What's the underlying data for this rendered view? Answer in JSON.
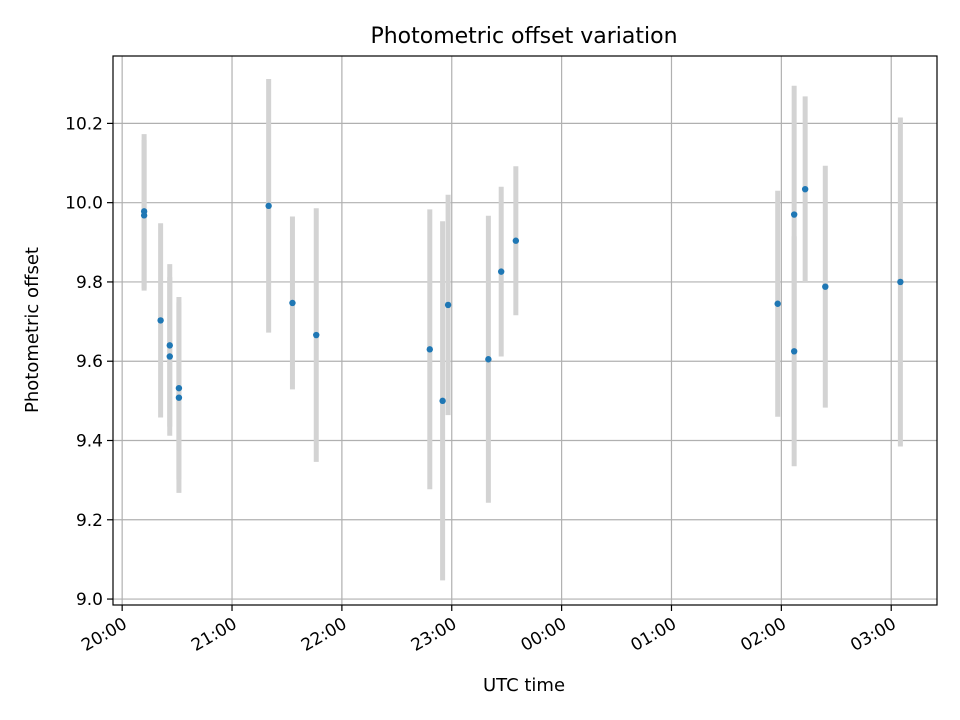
{
  "chart_data": {
    "type": "scatter",
    "title": "Photometric offset variation",
    "xlabel": "UTC time",
    "ylabel": "Photometric offset",
    "xlim": [
      "19:55",
      "03:25"
    ],
    "ylim": [
      8.985,
      10.37
    ],
    "x_ticks": [
      "20:00",
      "21:00",
      "22:00",
      "23:00",
      "00:00",
      "01:00",
      "02:00",
      "03:00"
    ],
    "y_ticks": [
      "9.0",
      "9.2",
      "9.4",
      "9.6",
      "9.8",
      "10.0",
      "10.2"
    ],
    "grid": true,
    "errorbar_color": "#d3d3d3",
    "point_color": "#1f77b4",
    "points": [
      {
        "x": "20:12",
        "y": 9.978,
        "err": 0.195
      },
      {
        "x": "20:12",
        "y": 9.968,
        "err": 0.19
      },
      {
        "x": "20:21",
        "y": 9.703,
        "err": 0.245
      },
      {
        "x": "20:26",
        "y": 9.64,
        "err": 0.205
      },
      {
        "x": "20:26",
        "y": 9.612,
        "err": 0.2
      },
      {
        "x": "20:31",
        "y": 9.532,
        "err": 0.23
      },
      {
        "x": "20:31",
        "y": 9.508,
        "err": 0.24
      },
      {
        "x": "21:20",
        "y": 9.992,
        "err": 0.32
      },
      {
        "x": "21:33",
        "y": 9.747,
        "err": 0.218
      },
      {
        "x": "21:46",
        "y": 9.666,
        "err": 0.32
      },
      {
        "x": "22:48",
        "y": 9.63,
        "err": 0.353
      },
      {
        "x": "22:55",
        "y": 9.5,
        "err": 0.453
      },
      {
        "x": "22:58",
        "y": 9.742,
        "err": 0.278
      },
      {
        "x": "23:20",
        "y": 9.605,
        "err": 0.362
      },
      {
        "x": "23:27",
        "y": 9.826,
        "err": 0.214
      },
      {
        "x": "23:35",
        "y": 9.904,
        "err": 0.188
      },
      {
        "x": "01:58",
        "y": 9.745,
        "err": 0.285
      },
      {
        "x": "02:07",
        "y": 9.97,
        "err": 0.325
      },
      {
        "x": "02:07",
        "y": 9.625,
        "err": 0.29
      },
      {
        "x": "02:13",
        "y": 10.034,
        "err": 0.234
      },
      {
        "x": "02:24",
        "y": 9.788,
        "err": 0.305
      },
      {
        "x": "03:05",
        "y": 9.8,
        "err": 0.415
      }
    ]
  }
}
